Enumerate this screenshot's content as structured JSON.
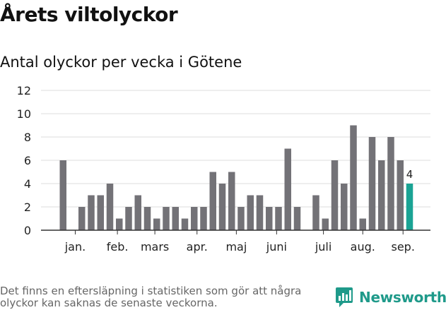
{
  "title": "Årets viltolyckor",
  "subtitle": "Antal olyckor per vecka i Götene",
  "note": "Det finns en eftersläpning i statistiken som gör att några olyckor kan saknas de senaste veckorna.",
  "logo": {
    "text": "Newsworthy",
    "icon": "bar-chart-icon",
    "color": "#1f9a8a"
  },
  "chart_data": {
    "type": "bar",
    "title": "Antal olyckor per vecka i Götene",
    "xlabel": "",
    "ylabel": "",
    "ylim": [
      0,
      12
    ],
    "yticks": [
      0,
      2,
      4,
      6,
      8,
      10,
      12
    ],
    "grid": true,
    "weeks": [
      1,
      2,
      3,
      4,
      5,
      6,
      7,
      8,
      9,
      10,
      11,
      12,
      13,
      14,
      15,
      16,
      17,
      18,
      19,
      20,
      21,
      22,
      23,
      24,
      25,
      26,
      27,
      28,
      29,
      30,
      31,
      32,
      33,
      34,
      35,
      36,
      37,
      38
    ],
    "values": [
      6,
      0,
      2,
      3,
      3,
      4,
      1,
      2,
      3,
      2,
      1,
      2,
      2,
      1,
      2,
      2,
      5,
      4,
      5,
      2,
      3,
      3,
      2,
      2,
      7,
      2,
      0,
      3,
      1,
      6,
      4,
      9,
      1,
      8,
      6,
      8,
      6,
      4
    ],
    "month_labels": [
      {
        "label": "jan.",
        "position": 2.3
      },
      {
        "label": "feb.",
        "position": 6.8
      },
      {
        "label": "mars",
        "position": 10.8
      },
      {
        "label": "apr.",
        "position": 15.3
      },
      {
        "label": "maj",
        "position": 19.5
      },
      {
        "label": "juni",
        "position": 23.8
      },
      {
        "label": "juli",
        "position": 28.8
      },
      {
        "label": "aug.",
        "position": 33.0
      },
      {
        "label": "sep.",
        "position": 37.3
      }
    ],
    "highlight_last": {
      "value_label": "4",
      "color": "#1aa394"
    },
    "bar_color": "#737277"
  }
}
